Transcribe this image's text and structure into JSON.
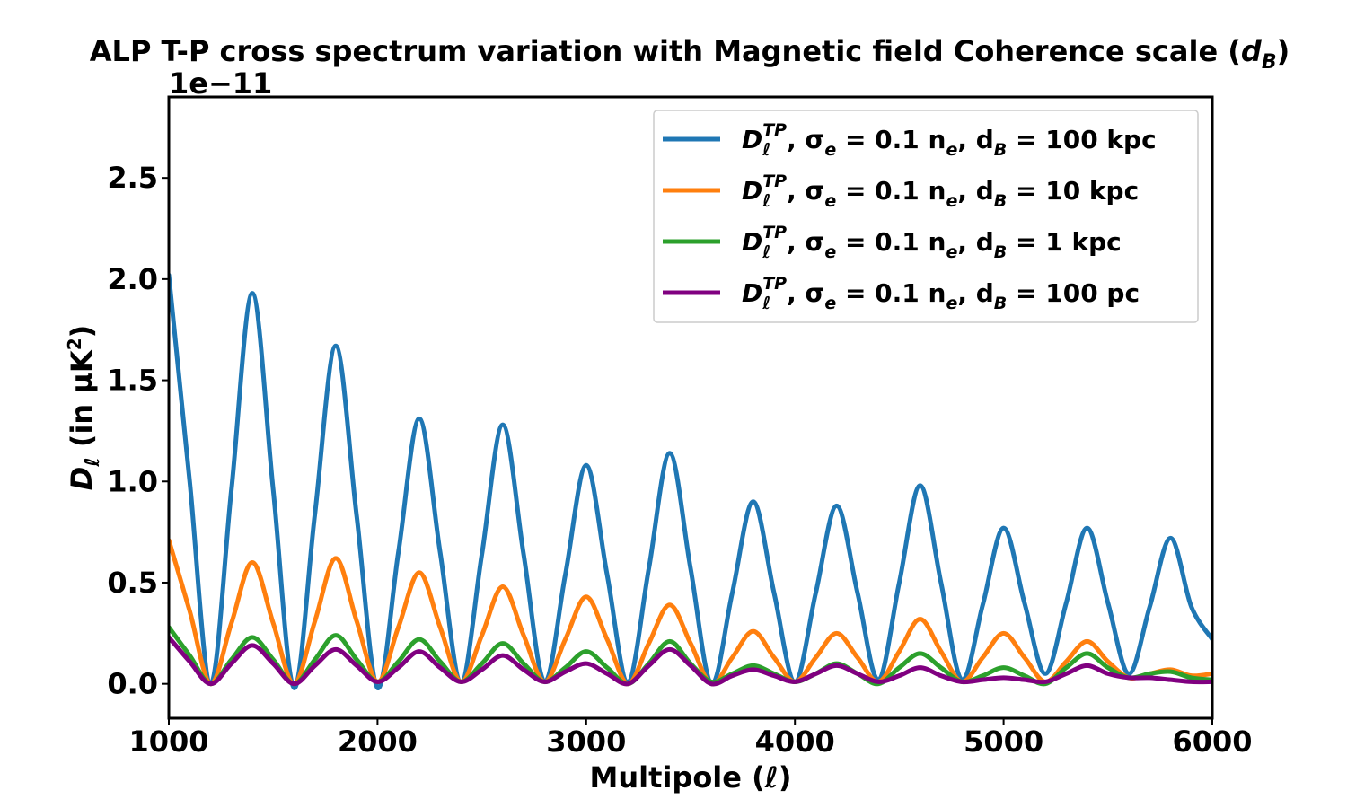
{
  "chart_data": {
    "type": "line",
    "title": "ALP T-P cross spectrum variation with Magnetic field Coherence scale",
    "title_symbol": "d",
    "title_symbol_sub": "B",
    "xlabel": "Multipole",
    "xlabel_symbol": "ℓ",
    "ylabel": "D",
    "ylabel_sub": "ℓ",
    "ylabel_unit": "(in μK",
    "ylabel_unit_sup": "2",
    "ylabel_unit_close": ")",
    "y_offset_text": "1e−11",
    "xlim": [
      1000,
      6000
    ],
    "ylim": [
      -0.17,
      2.9
    ],
    "x_ticks": [
      1000,
      2000,
      3000,
      4000,
      5000,
      6000
    ],
    "x_tick_labels": [
      "1000",
      "2000",
      "3000",
      "4000",
      "5000",
      "6000"
    ],
    "y_ticks": [
      0.0,
      0.5,
      1.0,
      1.5,
      2.0,
      2.5
    ],
    "y_tick_labels": [
      "0.0",
      "0.5",
      "1.0",
      "1.5",
      "2.0",
      "2.5"
    ],
    "legend_position": "top-right",
    "legend_common": {
      "D": "D",
      "sub": "ℓ",
      "sup": "TP",
      "sigma_text": ", σ",
      "sigma_sub": "e",
      "eq_text": " = 0.1 n",
      "n_sub": "e",
      "dB_text": ", d",
      "dB_sub": "B"
    },
    "series": [
      {
        "name": "D_ℓ^TP, σ_e = 0.1 n_e, d_B = 100 kpc",
        "value_label": " = 100 kpc",
        "color": "#1f77b4",
        "x": [
          1000,
          1100,
          1200,
          1300,
          1400,
          1500,
          1600,
          1700,
          1800,
          1900,
          2000,
          2100,
          2200,
          2300,
          2400,
          2500,
          2600,
          2700,
          2800,
          2900,
          3000,
          3100,
          3200,
          3300,
          3400,
          3500,
          3600,
          3700,
          3800,
          3900,
          4000,
          4100,
          4200,
          4300,
          4400,
          4500,
          4600,
          4700,
          4800,
          4900,
          5000,
          5100,
          5200,
          5300,
          5400,
          5500,
          5600,
          5700,
          5800,
          5900,
          6000
        ],
        "y": [
          2.02,
          1.0,
          0.0,
          0.96,
          1.93,
          0.96,
          -0.02,
          0.84,
          1.67,
          0.83,
          -0.02,
          0.65,
          1.31,
          0.65,
          0.01,
          0.64,
          1.28,
          0.64,
          0.01,
          0.54,
          1.08,
          0.54,
          0.01,
          0.57,
          1.14,
          0.57,
          0.0,
          0.45,
          0.9,
          0.45,
          0.01,
          0.45,
          0.88,
          0.45,
          0.02,
          0.5,
          0.98,
          0.5,
          0.02,
          0.39,
          0.77,
          0.4,
          0.05,
          0.4,
          0.77,
          0.4,
          0.05,
          0.38,
          0.72,
          0.38,
          0.22
        ]
      },
      {
        "name": "D_ℓ^TP, σ_e = 0.1 n_e, d_B = 10 kpc",
        "value_label": " = 10 kpc",
        "color": "#ff7f0e",
        "x": [
          1000,
          1100,
          1200,
          1300,
          1400,
          1500,
          1600,
          1700,
          1800,
          1900,
          2000,
          2100,
          2200,
          2300,
          2400,
          2500,
          2600,
          2700,
          2800,
          2900,
          3000,
          3100,
          3200,
          3300,
          3400,
          3500,
          3600,
          3700,
          3800,
          3900,
          4000,
          4100,
          4200,
          4300,
          4400,
          4500,
          4600,
          4700,
          4800,
          4900,
          5000,
          5100,
          5200,
          5300,
          5400,
          5500,
          5600,
          5700,
          5800,
          5900,
          6000
        ],
        "y": [
          0.71,
          0.36,
          0.0,
          0.3,
          0.6,
          0.3,
          0.0,
          0.31,
          0.62,
          0.31,
          0.01,
          0.28,
          0.55,
          0.28,
          0.01,
          0.24,
          0.48,
          0.24,
          0.01,
          0.22,
          0.43,
          0.22,
          0.0,
          0.2,
          0.39,
          0.2,
          0.0,
          0.13,
          0.26,
          0.13,
          0.01,
          0.13,
          0.25,
          0.13,
          0.01,
          0.16,
          0.32,
          0.16,
          0.01,
          0.13,
          0.25,
          0.13,
          0.01,
          0.11,
          0.21,
          0.11,
          0.03,
          0.05,
          0.07,
          0.04,
          0.05
        ]
      },
      {
        "name": "D_ℓ^TP, σ_e = 0.1 n_e, d_B = 1 kpc",
        "value_label": " = 1 kpc",
        "color": "#2ca02c",
        "x": [
          1000,
          1100,
          1200,
          1300,
          1400,
          1500,
          1600,
          1700,
          1800,
          1900,
          2000,
          2100,
          2200,
          2300,
          2400,
          2500,
          2600,
          2700,
          2800,
          2900,
          3000,
          3100,
          3200,
          3300,
          3400,
          3500,
          3600,
          3700,
          3800,
          3900,
          4000,
          4100,
          4200,
          4300,
          4400,
          4500,
          4600,
          4700,
          4800,
          4900,
          5000,
          5100,
          5200,
          5300,
          5400,
          5500,
          5600,
          5700,
          5800,
          5900,
          6000
        ],
        "y": [
          0.28,
          0.14,
          0.0,
          0.12,
          0.23,
          0.12,
          0.0,
          0.12,
          0.24,
          0.12,
          0.01,
          0.11,
          0.22,
          0.11,
          0.01,
          0.1,
          0.2,
          0.1,
          0.01,
          0.08,
          0.16,
          0.08,
          0.0,
          0.1,
          0.21,
          0.1,
          0.01,
          0.05,
          0.09,
          0.05,
          0.01,
          0.05,
          0.1,
          0.05,
          0.0,
          0.08,
          0.15,
          0.08,
          0.01,
          0.04,
          0.08,
          0.04,
          0.0,
          0.08,
          0.15,
          0.08,
          0.03,
          0.05,
          0.06,
          0.03,
          0.02
        ]
      },
      {
        "name": "D_ℓ^TP, σ_e = 0.1 n_e, d_B = 100 pc",
        "value_label": " = 100 pc",
        "color": "#800080",
        "x": [
          1000,
          1100,
          1200,
          1300,
          1400,
          1500,
          1600,
          1700,
          1800,
          1900,
          2000,
          2100,
          2200,
          2300,
          2400,
          2500,
          2600,
          2700,
          2800,
          2900,
          3000,
          3100,
          3200,
          3300,
          3400,
          3500,
          3600,
          3700,
          3800,
          3900,
          4000,
          4100,
          4200,
          4300,
          4400,
          4500,
          4600,
          4700,
          4800,
          4900,
          5000,
          5100,
          5200,
          5300,
          5400,
          5500,
          5600,
          5700,
          5800,
          5900,
          6000
        ],
        "y": [
          0.23,
          0.11,
          0.0,
          0.1,
          0.19,
          0.1,
          0.0,
          0.09,
          0.17,
          0.09,
          0.01,
          0.08,
          0.16,
          0.08,
          0.01,
          0.07,
          0.14,
          0.07,
          0.01,
          0.06,
          0.1,
          0.05,
          0.0,
          0.09,
          0.17,
          0.09,
          0.0,
          0.04,
          0.07,
          0.04,
          0.01,
          0.05,
          0.09,
          0.05,
          0.01,
          0.04,
          0.08,
          0.04,
          0.01,
          0.02,
          0.03,
          0.02,
          0.01,
          0.05,
          0.09,
          0.05,
          0.03,
          0.03,
          0.02,
          0.01,
          0.01
        ]
      }
    ]
  }
}
